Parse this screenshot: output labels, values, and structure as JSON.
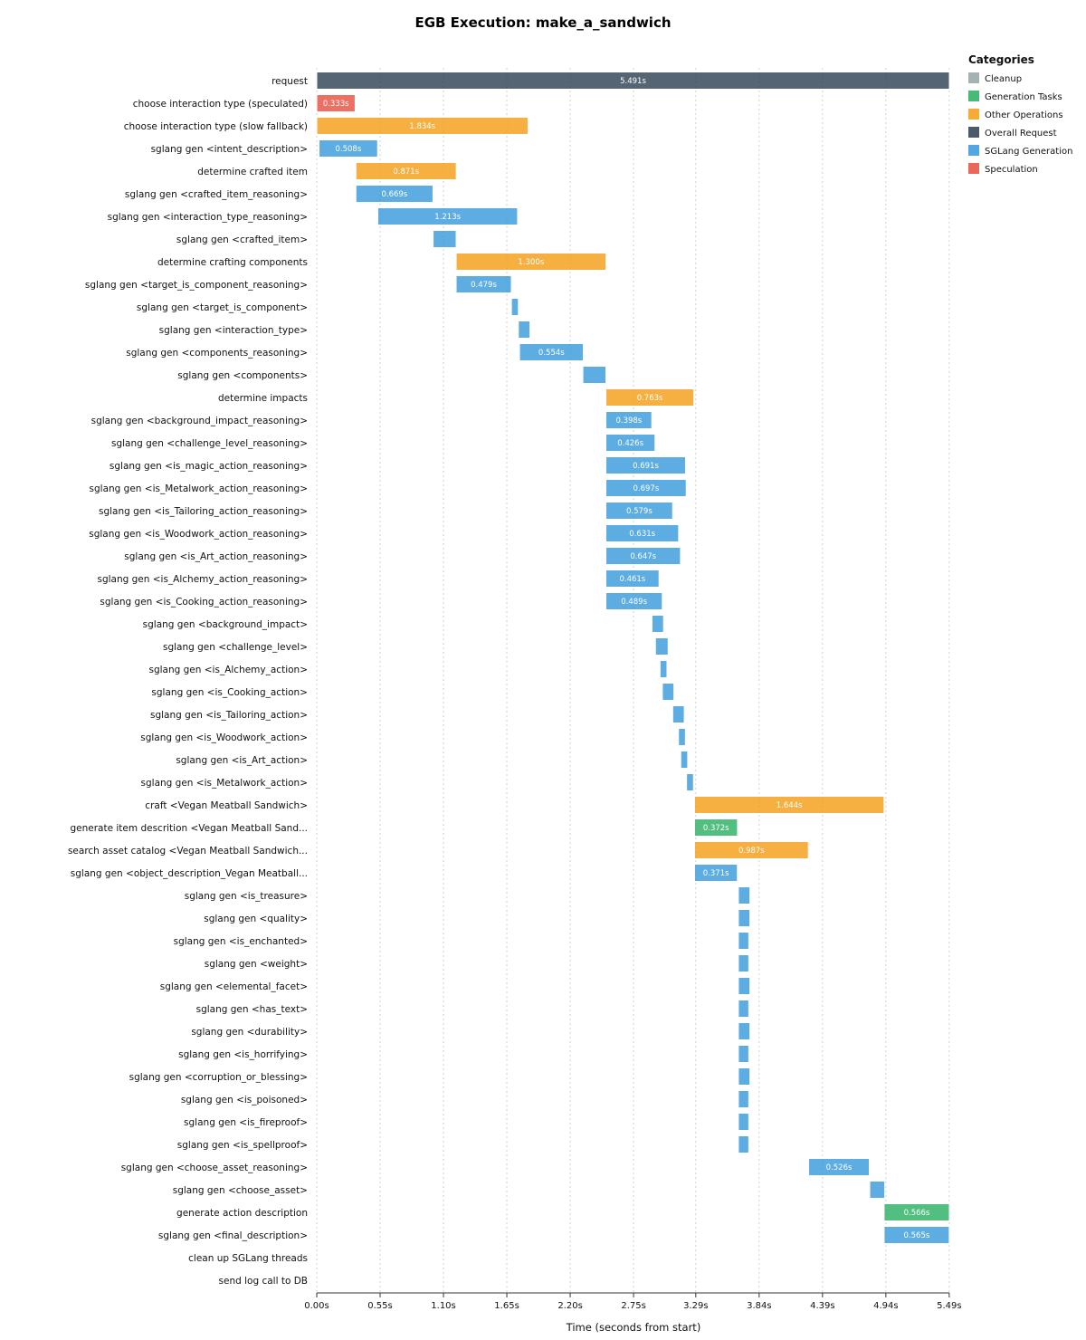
{
  "chart_data": {
    "type": "bar",
    "orientation": "horizontal-gantt",
    "title": "EGB Execution: make_a_sandwich",
    "xlabel": "Time (seconds from start)",
    "ylabel": "",
    "xlim": [
      0,
      5.491
    ],
    "x_ticks": [
      0,
      0.55,
      1.1,
      1.65,
      2.2,
      2.75,
      3.29,
      3.84,
      4.39,
      4.94,
      5.49
    ],
    "x_tick_labels": [
      "0.00s",
      "0.55s",
      "1.10s",
      "1.65s",
      "2.20s",
      "2.75s",
      "3.29s",
      "3.84s",
      "4.39s",
      "4.94s",
      "5.49s"
    ],
    "grid": "vertical dotted",
    "legend": {
      "title": "Categories",
      "placement": "top-right",
      "entries": [
        {
          "name": "Cleanup",
          "color": "#95a5a6"
        },
        {
          "name": "Generation Tasks",
          "color": "#27ae60"
        },
        {
          "name": "Other Operations",
          "color": "#f39c12"
        },
        {
          "name": "Overall Request",
          "color": "#2c3e50"
        },
        {
          "name": "SGLang Generation",
          "color": "#3498db"
        },
        {
          "name": "Speculation",
          "color": "#e74c3c"
        }
      ]
    },
    "tasks": [
      {
        "label": "request",
        "category": "Overall Request",
        "start": 0.0,
        "duration": 5.491,
        "value_label": "5.491s"
      },
      {
        "label": "choose interaction type (speculated)",
        "category": "Speculation",
        "start": 0.0,
        "duration": 0.333,
        "value_label": "0.333s"
      },
      {
        "label": "choose interaction type (slow fallback)",
        "category": "Other Operations",
        "start": 0.0,
        "duration": 1.834,
        "value_label": "1.834s"
      },
      {
        "label": "sglang gen <intent_description>",
        "category": "SGLang Generation",
        "start": 0.02,
        "duration": 0.508,
        "value_label": "0.508s"
      },
      {
        "label": "determine crafted item",
        "category": "Other Operations",
        "start": 0.34,
        "duration": 0.871,
        "value_label": "0.871s"
      },
      {
        "label": "sglang gen <crafted_item_reasoning>",
        "category": "SGLang Generation",
        "start": 0.34,
        "duration": 0.669,
        "value_label": "0.669s"
      },
      {
        "label": "sglang gen <interaction_type_reasoning>",
        "category": "SGLang Generation",
        "start": 0.53,
        "duration": 1.213,
        "value_label": "1.213s"
      },
      {
        "label": "sglang gen <crafted_item>",
        "category": "SGLang Generation",
        "start": 1.01,
        "duration": 0.2,
        "value_label": ""
      },
      {
        "label": "determine crafting components",
        "category": "Other Operations",
        "start": 1.21,
        "duration": 1.3,
        "value_label": "1.300s"
      },
      {
        "label": "sglang gen <target_is_component_reasoning>",
        "category": "SGLang Generation",
        "start": 1.21,
        "duration": 0.479,
        "value_label": "0.479s"
      },
      {
        "label": "sglang gen <target_is_component>",
        "category": "SGLang Generation",
        "start": 1.69,
        "duration": 0.06,
        "value_label": ""
      },
      {
        "label": "sglang gen <interaction_type>",
        "category": "SGLang Generation",
        "start": 1.75,
        "duration": 0.1,
        "value_label": ""
      },
      {
        "label": "sglang gen <components_reasoning>",
        "category": "SGLang Generation",
        "start": 1.76,
        "duration": 0.554,
        "value_label": "0.554s"
      },
      {
        "label": "sglang gen <components>",
        "category": "SGLang Generation",
        "start": 2.31,
        "duration": 0.2,
        "value_label": ""
      },
      {
        "label": "determine impacts",
        "category": "Other Operations",
        "start": 2.51,
        "duration": 0.763,
        "value_label": "0.763s"
      },
      {
        "label": "sglang gen <background_impact_reasoning>",
        "category": "SGLang Generation",
        "start": 2.51,
        "duration": 0.398,
        "value_label": "0.398s"
      },
      {
        "label": "sglang gen <challenge_level_reasoning>",
        "category": "SGLang Generation",
        "start": 2.51,
        "duration": 0.426,
        "value_label": "0.426s"
      },
      {
        "label": "sglang gen <is_magic_action_reasoning>",
        "category": "SGLang Generation",
        "start": 2.51,
        "duration": 0.691,
        "value_label": "0.691s"
      },
      {
        "label": "sglang gen <is_Metalwork_action_reasoning>",
        "category": "SGLang Generation",
        "start": 2.51,
        "duration": 0.697,
        "value_label": "0.697s"
      },
      {
        "label": "sglang gen <is_Tailoring_action_reasoning>",
        "category": "SGLang Generation",
        "start": 2.51,
        "duration": 0.579,
        "value_label": "0.579s"
      },
      {
        "label": "sglang gen <is_Woodwork_action_reasoning>",
        "category": "SGLang Generation",
        "start": 2.51,
        "duration": 0.631,
        "value_label": "0.631s"
      },
      {
        "label": "sglang gen <is_Art_action_reasoning>",
        "category": "SGLang Generation",
        "start": 2.51,
        "duration": 0.647,
        "value_label": "0.647s"
      },
      {
        "label": "sglang gen <is_Alchemy_action_reasoning>",
        "category": "SGLang Generation",
        "start": 2.51,
        "duration": 0.461,
        "value_label": "0.461s"
      },
      {
        "label": "sglang gen <is_Cooking_action_reasoning>",
        "category": "SGLang Generation",
        "start": 2.51,
        "duration": 0.489,
        "value_label": "0.489s"
      },
      {
        "label": "sglang gen <background_impact>",
        "category": "SGLang Generation",
        "start": 2.91,
        "duration": 0.1,
        "value_label": ""
      },
      {
        "label": "sglang gen <challenge_level>",
        "category": "SGLang Generation",
        "start": 2.94,
        "duration": 0.11,
        "value_label": ""
      },
      {
        "label": "sglang gen <is_Alchemy_action>",
        "category": "SGLang Generation",
        "start": 2.98,
        "duration": 0.06,
        "value_label": ""
      },
      {
        "label": "sglang gen <is_Cooking_action>",
        "category": "SGLang Generation",
        "start": 3.0,
        "duration": 0.1,
        "value_label": ""
      },
      {
        "label": "sglang gen <is_Tailoring_action>",
        "category": "SGLang Generation",
        "start": 3.09,
        "duration": 0.1,
        "value_label": ""
      },
      {
        "label": "sglang gen <is_Woodwork_action>",
        "category": "SGLang Generation",
        "start": 3.14,
        "duration": 0.06,
        "value_label": ""
      },
      {
        "label": "sglang gen <is_Art_action>",
        "category": "SGLang Generation",
        "start": 3.16,
        "duration": 0.06,
        "value_label": ""
      },
      {
        "label": "sglang gen <is_Metalwork_action>",
        "category": "SGLang Generation",
        "start": 3.21,
        "duration": 0.06,
        "value_label": ""
      },
      {
        "label": "craft <Vegan Meatball Sandwich>",
        "category": "Other Operations",
        "start": 3.28,
        "duration": 1.644,
        "value_label": "1.644s"
      },
      {
        "label": "generate item descrition <Vegan Meatball Sand...",
        "category": "Generation Tasks",
        "start": 3.28,
        "duration": 0.372,
        "value_label": "0.372s"
      },
      {
        "label": "search asset catalog <Vegan Meatball Sandwich...",
        "category": "Other Operations",
        "start": 3.28,
        "duration": 0.987,
        "value_label": "0.987s"
      },
      {
        "label": "sglang gen <object_description_Vegan Meatball...",
        "category": "SGLang Generation",
        "start": 3.28,
        "duration": 0.371,
        "value_label": "0.371s"
      },
      {
        "label": "sglang gen <is_treasure>",
        "category": "SGLang Generation",
        "start": 3.66,
        "duration": 0.1,
        "value_label": ""
      },
      {
        "label": "sglang gen <quality>",
        "category": "SGLang Generation",
        "start": 3.66,
        "duration": 0.1,
        "value_label": ""
      },
      {
        "label": "sglang gen <is_enchanted>",
        "category": "SGLang Generation",
        "start": 3.66,
        "duration": 0.09,
        "value_label": ""
      },
      {
        "label": "sglang gen <weight>",
        "category": "SGLang Generation",
        "start": 3.66,
        "duration": 0.09,
        "value_label": ""
      },
      {
        "label": "sglang gen <elemental_facet>",
        "category": "SGLang Generation",
        "start": 3.66,
        "duration": 0.1,
        "value_label": ""
      },
      {
        "label": "sglang gen <has_text>",
        "category": "SGLang Generation",
        "start": 3.66,
        "duration": 0.09,
        "value_label": ""
      },
      {
        "label": "sglang gen <durability>",
        "category": "SGLang Generation",
        "start": 3.66,
        "duration": 0.1,
        "value_label": ""
      },
      {
        "label": "sglang gen <is_horrifying>",
        "category": "SGLang Generation",
        "start": 3.66,
        "duration": 0.09,
        "value_label": ""
      },
      {
        "label": "sglang gen <corruption_or_blessing>",
        "category": "SGLang Generation",
        "start": 3.66,
        "duration": 0.1,
        "value_label": ""
      },
      {
        "label": "sglang gen <is_poisoned>",
        "category": "SGLang Generation",
        "start": 3.66,
        "duration": 0.09,
        "value_label": ""
      },
      {
        "label": "sglang gen <is_fireproof>",
        "category": "SGLang Generation",
        "start": 3.66,
        "duration": 0.09,
        "value_label": ""
      },
      {
        "label": "sglang gen <is_spellproof>",
        "category": "SGLang Generation",
        "start": 3.66,
        "duration": 0.09,
        "value_label": ""
      },
      {
        "label": "sglang gen <choose_asset_reasoning>",
        "category": "SGLang Generation",
        "start": 4.27,
        "duration": 0.526,
        "value_label": "0.526s"
      },
      {
        "label": "sglang gen <choose_asset>",
        "category": "SGLang Generation",
        "start": 4.8,
        "duration": 0.13,
        "value_label": ""
      },
      {
        "label": "generate action description",
        "category": "Generation Tasks",
        "start": 4.925,
        "duration": 0.566,
        "value_label": "0.566s"
      },
      {
        "label": "sglang gen <final_description>",
        "category": "SGLang Generation",
        "start": 4.925,
        "duration": 0.565,
        "value_label": "0.565s"
      },
      {
        "label": "clean up SGLang threads",
        "category": "Cleanup",
        "start": 5.491,
        "duration": 0.0,
        "value_label": ""
      },
      {
        "label": "send log call to DB",
        "category": "Cleanup",
        "start": 5.491,
        "duration": 0.0,
        "value_label": ""
      }
    ]
  }
}
